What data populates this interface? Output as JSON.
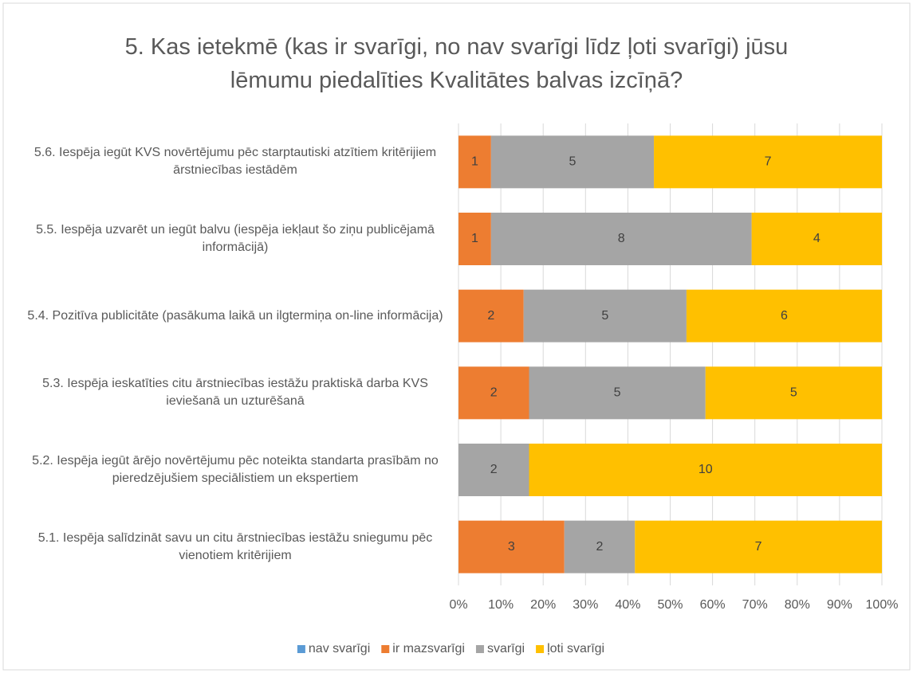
{
  "chart_data": {
    "type": "bar",
    "orientation": "horizontal",
    "stacked": "percent",
    "title": "5. Kas ietekmē (kas ir svarīgi, no nav svarīgi līdz ļoti svarīgi) jūsu lēmumu piedalīties Kvalitātes balvas izcīņā?",
    "categories": [
      "5.6. Iespēja iegūt KVS novērtējumu pēc starptautiski atzītiem kritērijiem ārstniecības iestādēm",
      "5.5. Iespēja uzvarēt un iegūt balvu (iespēja iekļaut šo ziņu publicējamā informācijā)",
      "5.4. Pozitīva publicitāte (pasākuma laikā un ilgtermiņa on-line informācija)",
      "5.3. Iespēja ieskatīties citu ārstniecības iestāžu praktiskā darba KVS ieviešanā un uzturēšanā",
      "5.2. Iespēja iegūt ārējo novērtējumu pēc noteikta standarta prasībām no pieredzējušiem speciālistiem un ekspertiem",
      "5.1. Iespēja salīdzināt savu un citu ārstniecības iestāžu sniegumu pēc vienotiem kritērijiem"
    ],
    "series": [
      {
        "name": "nav svarīgi",
        "color": "#5b9bd5",
        "values": [
          0,
          0,
          0,
          0,
          0,
          0
        ]
      },
      {
        "name": "ir mazsvarīgi",
        "color": "#ed7d31",
        "values": [
          1,
          1,
          2,
          2,
          0,
          3
        ]
      },
      {
        "name": "svarīgi",
        "color": "#a5a5a5",
        "values": [
          5,
          8,
          5,
          5,
          2,
          2
        ]
      },
      {
        "name": "ļoti svarīgi",
        "color": "#ffc000",
        "values": [
          7,
          4,
          6,
          5,
          10,
          7
        ]
      }
    ],
    "xlim": [
      0,
      100
    ],
    "xticks": [
      {
        "value": 0,
        "label": "0%"
      },
      {
        "value": 10,
        "label": "10%"
      },
      {
        "value": 20,
        "label": "20%"
      },
      {
        "value": 30,
        "label": "30%"
      },
      {
        "value": 40,
        "label": "40%"
      },
      {
        "value": 50,
        "label": "50%"
      },
      {
        "value": 60,
        "label": "60%"
      },
      {
        "value": 70,
        "label": "70%"
      },
      {
        "value": 80,
        "label": "80%"
      },
      {
        "value": 90,
        "label": "90%"
      },
      {
        "value": 100,
        "label": "100%"
      }
    ],
    "grid": true,
    "legend": "bottom"
  }
}
